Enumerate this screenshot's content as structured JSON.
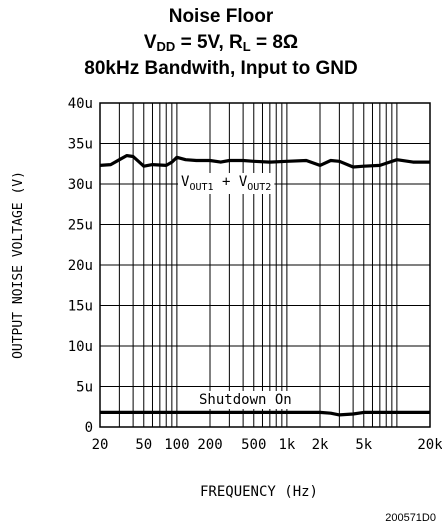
{
  "title": {
    "line1": "Noise Floor",
    "line2_vdd_main": "V",
    "line2_vdd_sub": "DD",
    "line2_vdd_rest": " = 5V, R",
    "line2_rl_sub": "L",
    "line2_rest": " = 8Ω",
    "line3": "80kHz Bandwith, Input to GND"
  },
  "figure_id": "200571D0",
  "chart_data": {
    "type": "line",
    "xlabel": "FREQUENCY (Hz)",
    "ylabel": "OUTPUT NOISE VOLTAGE (V)",
    "x_scale": "log",
    "xlim": [
      20,
      20000
    ],
    "ylim": [
      0,
      40
    ],
    "y_unit": "u",
    "x_ticks": [
      {
        "value": 20,
        "label": "20"
      },
      {
        "value": 50,
        "label": "50"
      },
      {
        "value": 100,
        "label": "100"
      },
      {
        "value": 200,
        "label": "200"
      },
      {
        "value": 500,
        "label": "500"
      },
      {
        "value": 1000,
        "label": "1k"
      },
      {
        "value": 2000,
        "label": "2k"
      },
      {
        "value": 5000,
        "label": "5k"
      },
      {
        "value": 20000,
        "label": "20k"
      }
    ],
    "y_ticks": [
      {
        "value": 0,
        "label": "0"
      },
      {
        "value": 5,
        "label": "5u"
      },
      {
        "value": 10,
        "label": "10u"
      },
      {
        "value": 15,
        "label": "15u"
      },
      {
        "value": 20,
        "label": "20u"
      },
      {
        "value": 25,
        "label": "25u"
      },
      {
        "value": 30,
        "label": "30u"
      },
      {
        "value": 35,
        "label": "35u"
      },
      {
        "value": 40,
        "label": "40u"
      }
    ],
    "grid": true,
    "series": [
      {
        "name_main": "V",
        "name_sub1": "OUT1",
        "name_plus": " + V",
        "name_sub2": "OUT2",
        "color": "#000000",
        "x": [
          20,
          25,
          30,
          35,
          40,
          50,
          60,
          80,
          90,
          100,
          120,
          150,
          200,
          250,
          300,
          400,
          500,
          700,
          1000,
          1500,
          2000,
          2500,
          3000,
          4000,
          5000,
          7000,
          10000,
          14000,
          20000
        ],
        "y": [
          32.3,
          32.4,
          33.0,
          33.5,
          33.4,
          32.2,
          32.4,
          32.3,
          32.7,
          33.3,
          33.0,
          32.9,
          32.9,
          32.7,
          32.9,
          32.9,
          32.8,
          32.7,
          32.8,
          32.9,
          32.3,
          32.9,
          32.8,
          32.1,
          32.2,
          32.3,
          33.0,
          32.7,
          32.7
        ]
      },
      {
        "name": "Shutdown On",
        "color": "#000000",
        "x": [
          20,
          50,
          100,
          500,
          1000,
          2000,
          2500,
          3000,
          4000,
          5000,
          10000,
          20000
        ],
        "y": [
          1.8,
          1.8,
          1.8,
          1.8,
          1.8,
          1.8,
          1.7,
          1.5,
          1.6,
          1.8,
          1.8,
          1.8
        ]
      }
    ]
  }
}
